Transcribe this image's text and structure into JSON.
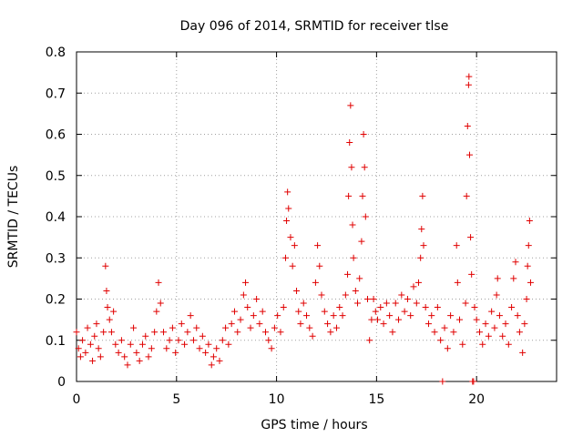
{
  "chart_data": {
    "type": "scatter",
    "title": "Day 096 of 2014, SRMTID for receiver tlse",
    "xlabel": "GPS time / hours",
    "ylabel": "SRMTID / TECUs",
    "xlim": [
      0,
      24
    ],
    "ylim": [
      0,
      0.8
    ],
    "xticks": [
      0,
      5,
      10,
      15,
      20
    ],
    "xtick_labels": [
      "0",
      "5",
      "10",
      "15",
      "20"
    ],
    "yticks": [
      0,
      0.1,
      0.2,
      0.3,
      0.4,
      0.5,
      0.6,
      0.7,
      0.8
    ],
    "ytick_labels": [
      "0",
      "0.1",
      "0.2",
      "0.3",
      "0.4",
      "0.5",
      "0.6",
      "0.7",
      "0.8"
    ],
    "grid": true,
    "marker": "+",
    "color": "#e00000",
    "series": [
      {
        "name": "SRMTID",
        "points": [
          [
            0.0,
            0.12
          ],
          [
            0.1,
            0.08
          ],
          [
            0.2,
            0.06
          ],
          [
            0.3,
            0.1
          ],
          [
            0.45,
            0.07
          ],
          [
            0.55,
            0.13
          ],
          [
            0.7,
            0.09
          ],
          [
            0.8,
            0.05
          ],
          [
            0.9,
            0.11
          ],
          [
            1.0,
            0.14
          ],
          [
            1.1,
            0.08
          ],
          [
            1.2,
            0.06
          ],
          [
            1.35,
            0.12
          ],
          [
            1.45,
            0.28
          ],
          [
            1.5,
            0.22
          ],
          [
            1.55,
            0.18
          ],
          [
            1.65,
            0.15
          ],
          [
            1.75,
            0.12
          ],
          [
            1.85,
            0.17
          ],
          [
            1.95,
            0.09
          ],
          [
            2.1,
            0.07
          ],
          [
            2.25,
            0.1
          ],
          [
            2.4,
            0.06
          ],
          [
            2.55,
            0.04
          ],
          [
            2.7,
            0.09
          ],
          [
            2.85,
            0.13
          ],
          [
            3.0,
            0.07
          ],
          [
            3.15,
            0.05
          ],
          [
            3.3,
            0.09
          ],
          [
            3.45,
            0.11
          ],
          [
            3.6,
            0.06
          ],
          [
            3.75,
            0.08
          ],
          [
            3.9,
            0.12
          ],
          [
            4.0,
            0.17
          ],
          [
            4.1,
            0.24
          ],
          [
            4.2,
            0.19
          ],
          [
            4.35,
            0.12
          ],
          [
            4.5,
            0.08
          ],
          [
            4.65,
            0.1
          ],
          [
            4.8,
            0.13
          ],
          [
            4.95,
            0.07
          ],
          [
            5.1,
            0.1
          ],
          [
            5.25,
            0.14
          ],
          [
            5.4,
            0.09
          ],
          [
            5.55,
            0.12
          ],
          [
            5.7,
            0.16
          ],
          [
            5.85,
            0.1
          ],
          [
            6.0,
            0.13
          ],
          [
            6.15,
            0.08
          ],
          [
            6.3,
            0.11
          ],
          [
            6.45,
            0.07
          ],
          [
            6.6,
            0.09
          ],
          [
            6.75,
            0.04
          ],
          [
            6.85,
            0.06
          ],
          [
            7.0,
            0.08
          ],
          [
            7.15,
            0.05
          ],
          [
            7.3,
            0.1
          ],
          [
            7.45,
            0.13
          ],
          [
            7.6,
            0.09
          ],
          [
            7.75,
            0.14
          ],
          [
            7.9,
            0.17
          ],
          [
            8.05,
            0.12
          ],
          [
            8.2,
            0.15
          ],
          [
            8.35,
            0.21
          ],
          [
            8.45,
            0.24
          ],
          [
            8.55,
            0.18
          ],
          [
            8.7,
            0.13
          ],
          [
            8.85,
            0.16
          ],
          [
            9.0,
            0.2
          ],
          [
            9.15,
            0.14
          ],
          [
            9.3,
            0.17
          ],
          [
            9.45,
            0.12
          ],
          [
            9.6,
            0.1
          ],
          [
            9.75,
            0.08
          ],
          [
            9.9,
            0.13
          ],
          [
            10.05,
            0.16
          ],
          [
            10.2,
            0.12
          ],
          [
            10.35,
            0.18
          ],
          [
            10.45,
            0.3
          ],
          [
            10.5,
            0.39
          ],
          [
            10.55,
            0.46
          ],
          [
            10.6,
            0.42
          ],
          [
            10.7,
            0.35
          ],
          [
            10.8,
            0.28
          ],
          [
            10.9,
            0.33
          ],
          [
            11.0,
            0.22
          ],
          [
            11.1,
            0.17
          ],
          [
            11.2,
            0.14
          ],
          [
            11.35,
            0.19
          ],
          [
            11.5,
            0.16
          ],
          [
            11.65,
            0.13
          ],
          [
            11.8,
            0.11
          ],
          [
            11.95,
            0.24
          ],
          [
            12.05,
            0.33
          ],
          [
            12.15,
            0.28
          ],
          [
            12.25,
            0.21
          ],
          [
            12.4,
            0.17
          ],
          [
            12.55,
            0.14
          ],
          [
            12.7,
            0.12
          ],
          [
            12.85,
            0.16
          ],
          [
            13.0,
            0.13
          ],
          [
            13.15,
            0.18
          ],
          [
            13.3,
            0.16
          ],
          [
            13.45,
            0.21
          ],
          [
            13.55,
            0.26
          ],
          [
            13.6,
            0.45
          ],
          [
            13.65,
            0.58
          ],
          [
            13.7,
            0.67
          ],
          [
            13.75,
            0.52
          ],
          [
            13.8,
            0.38
          ],
          [
            13.85,
            0.3
          ],
          [
            13.95,
            0.22
          ],
          [
            14.05,
            0.19
          ],
          [
            14.15,
            0.25
          ],
          [
            14.25,
            0.34
          ],
          [
            14.3,
            0.45
          ],
          [
            14.35,
            0.6
          ],
          [
            14.4,
            0.52
          ],
          [
            14.45,
            0.4
          ],
          [
            14.55,
            0.2
          ],
          [
            14.65,
            0.1
          ],
          [
            14.75,
            0.15
          ],
          [
            14.85,
            0.2
          ],
          [
            14.95,
            0.17
          ],
          [
            15.05,
            0.15
          ],
          [
            15.2,
            0.18
          ],
          [
            15.35,
            0.14
          ],
          [
            15.5,
            0.19
          ],
          [
            15.65,
            0.16
          ],
          [
            15.8,
            0.12
          ],
          [
            15.95,
            0.19
          ],
          [
            16.1,
            0.15
          ],
          [
            16.25,
            0.21
          ],
          [
            16.4,
            0.17
          ],
          [
            16.55,
            0.2
          ],
          [
            16.7,
            0.16
          ],
          [
            16.85,
            0.23
          ],
          [
            17.0,
            0.19
          ],
          [
            17.1,
            0.24
          ],
          [
            17.2,
            0.3
          ],
          [
            17.25,
            0.37
          ],
          [
            17.3,
            0.45
          ],
          [
            17.35,
            0.33
          ],
          [
            17.45,
            0.18
          ],
          [
            17.6,
            0.14
          ],
          [
            17.75,
            0.16
          ],
          [
            17.9,
            0.12
          ],
          [
            18.05,
            0.18
          ],
          [
            18.2,
            0.1
          ],
          [
            18.3,
            0.0
          ],
          [
            18.4,
            0.13
          ],
          [
            18.55,
            0.08
          ],
          [
            18.7,
            0.16
          ],
          [
            18.85,
            0.12
          ],
          [
            19.0,
            0.33
          ],
          [
            19.05,
            0.24
          ],
          [
            19.15,
            0.15
          ],
          [
            19.3,
            0.09
          ],
          [
            19.45,
            0.19
          ],
          [
            19.5,
            0.45
          ],
          [
            19.55,
            0.62
          ],
          [
            19.6,
            0.72
          ],
          [
            19.62,
            0.74
          ],
          [
            19.65,
            0.55
          ],
          [
            19.7,
            0.35
          ],
          [
            19.75,
            0.26
          ],
          [
            19.8,
            0.0
          ],
          [
            19.85,
            0.0
          ],
          [
            19.9,
            0.18
          ],
          [
            20.0,
            0.15
          ],
          [
            20.15,
            0.12
          ],
          [
            20.3,
            0.09
          ],
          [
            20.45,
            0.14
          ],
          [
            20.6,
            0.11
          ],
          [
            20.75,
            0.17
          ],
          [
            20.9,
            0.13
          ],
          [
            21.0,
            0.21
          ],
          [
            21.05,
            0.25
          ],
          [
            21.15,
            0.16
          ],
          [
            21.3,
            0.11
          ],
          [
            21.45,
            0.14
          ],
          [
            21.6,
            0.09
          ],
          [
            21.75,
            0.18
          ],
          [
            21.85,
            0.25
          ],
          [
            21.95,
            0.29
          ],
          [
            22.05,
            0.16
          ],
          [
            22.15,
            0.12
          ],
          [
            22.3,
            0.07
          ],
          [
            22.4,
            0.14
          ],
          [
            22.5,
            0.2
          ],
          [
            22.55,
            0.28
          ],
          [
            22.6,
            0.33
          ],
          [
            22.65,
            0.39
          ],
          [
            22.7,
            0.24
          ]
        ]
      }
    ]
  }
}
